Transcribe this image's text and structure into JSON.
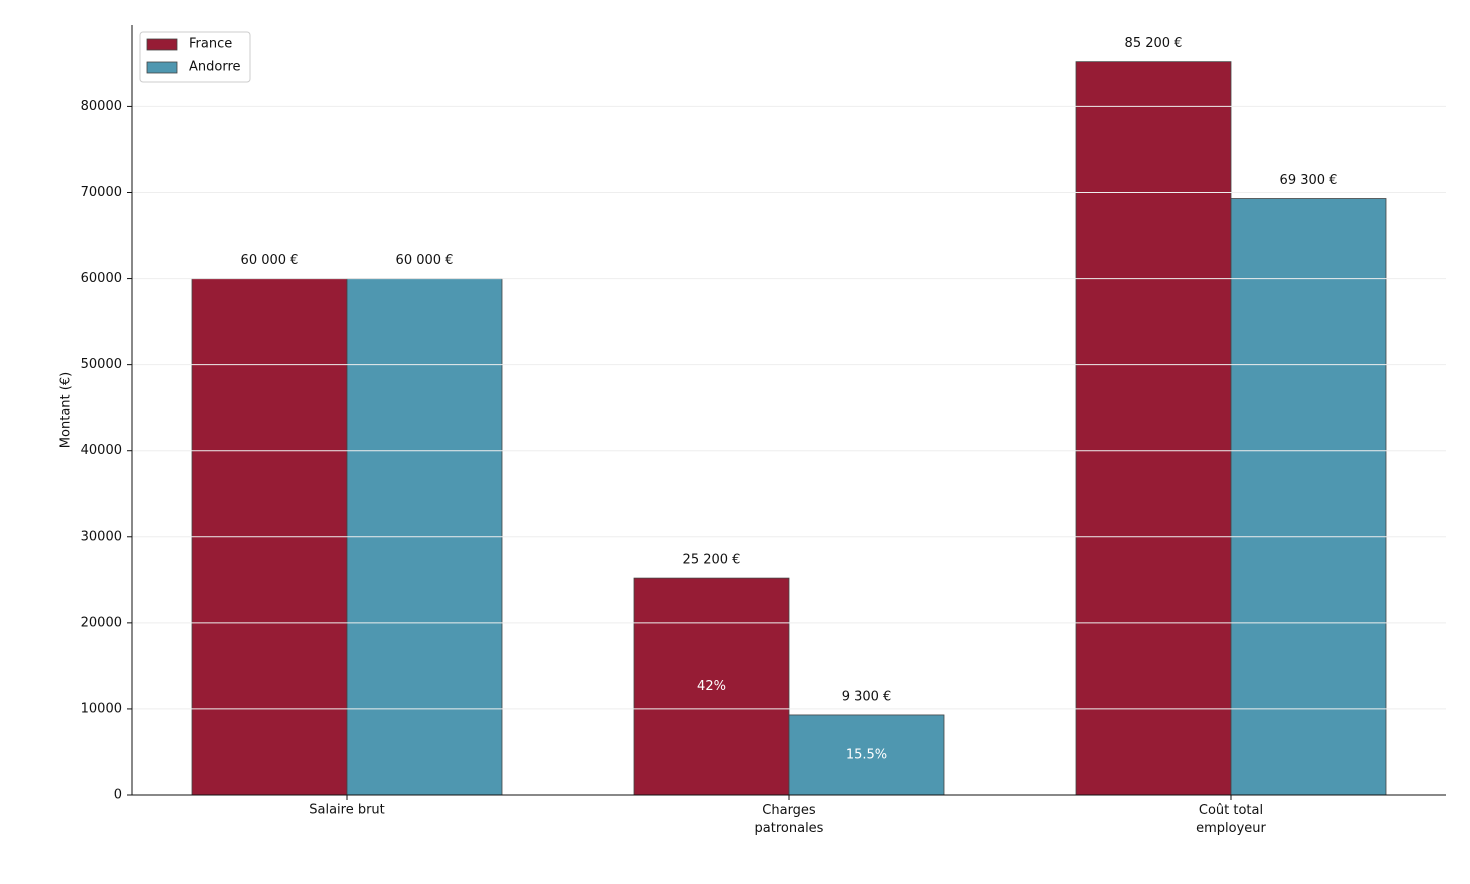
{
  "chart_data": {
    "type": "bar",
    "y_label": "Montant (€)",
    "categories": [
      "Salaire brut",
      "Charges\npatronales",
      "Coût total\nemployeur"
    ],
    "series": [
      {
        "name": "France",
        "color": "#961c35",
        "values": [
          60000,
          25200,
          85200
        ],
        "value_labels": [
          "60 000 €",
          "25 200 €",
          "85 200 €"
        ],
        "rate_labels": [
          null,
          "42%",
          null
        ]
      },
      {
        "name": "Andorre",
        "color": "#4f97b0",
        "values": [
          60000,
          9300,
          69300
        ],
        "value_labels": [
          "60 000 €",
          "9 300 €",
          "69 300 €"
        ],
        "rate_labels": [
          null,
          "15.5%",
          null
        ]
      }
    ],
    "ylim": [
      0,
      89460
    ],
    "yticks": [
      0,
      10000,
      20000,
      30000,
      40000,
      50000,
      60000,
      70000,
      80000
    ],
    "grid": true,
    "legend": "upper left"
  }
}
